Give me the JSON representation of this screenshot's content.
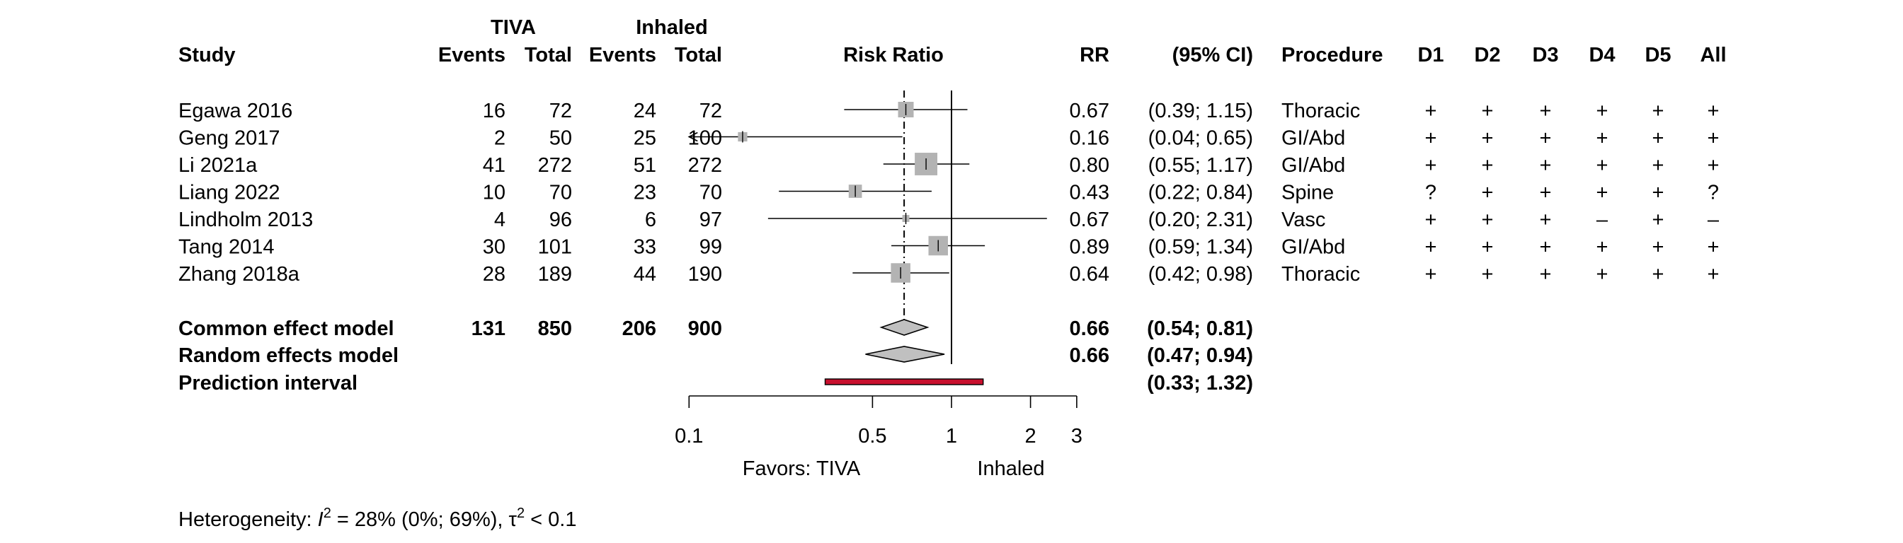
{
  "chart_data": {
    "type": "forest",
    "headers": {
      "group1": "TIVA",
      "group2": "Inhaled",
      "study": "Study",
      "events": "Events",
      "total": "Total",
      "plot": "Risk Ratio",
      "rr": "RR",
      "ci": "(95% CI)",
      "procedure": "Procedure",
      "d1": "D1",
      "d2": "D2",
      "d3": "D3",
      "d4": "D4",
      "d5": "D5",
      "all": "All"
    },
    "studies": [
      {
        "name": "Egawa 2016",
        "e1": "16",
        "n1": "72",
        "e2": "24",
        "n2": "72",
        "rr_label": "0.67",
        "ci_label": "(0.39; 1.15)",
        "rr": 0.67,
        "lo": 0.39,
        "hi": 1.15,
        "weight": 1.0,
        "procedure": "Thoracic",
        "bias": [
          "+",
          "+",
          "+",
          "+",
          "+",
          "+"
        ]
      },
      {
        "name": "Geng 2017",
        "e1": "2",
        "n1": "50",
        "e2": "25",
        "n2": "100",
        "rr_label": "0.16",
        "ci_label": "(0.04; 0.65)",
        "rr": 0.16,
        "lo": 0.04,
        "hi": 0.65,
        "weight": 0.6,
        "procedure": "GI/Abd",
        "bias": [
          "+",
          "+",
          "+",
          "+",
          "+",
          "+"
        ]
      },
      {
        "name": "Li 2021a",
        "e1": "41",
        "n1": "272",
        "e2": "51",
        "n2": "272",
        "rr_label": "0.80",
        "ci_label": "(0.55; 1.17)",
        "rr": 0.8,
        "lo": 0.55,
        "hi": 1.17,
        "weight": 1.45,
        "procedure": "GI/Abd",
        "bias": [
          "+",
          "+",
          "+",
          "+",
          "+",
          "+"
        ]
      },
      {
        "name": "Liang 2022",
        "e1": "10",
        "n1": "70",
        "e2": "23",
        "n2": "70",
        "rr_label": "0.43",
        "ci_label": "(0.22; 0.84)",
        "rr": 0.43,
        "lo": 0.22,
        "hi": 0.84,
        "weight": 0.85,
        "procedure": "Spine",
        "bias": [
          "?",
          "+",
          "+",
          "+",
          "+",
          "?"
        ]
      },
      {
        "name": "Lindholm 2013",
        "e1": "4",
        "n1": "96",
        "e2": "6",
        "n2": "97",
        "rr_label": "0.67",
        "ci_label": "(0.20; 2.31)",
        "rr": 0.67,
        "lo": 0.2,
        "hi": 2.31,
        "weight": 0.45,
        "procedure": "Vasc",
        "bias": [
          "+",
          "+",
          "+",
          "–",
          "+",
          "–"
        ]
      },
      {
        "name": "Tang 2014",
        "e1": "30",
        "n1": "101",
        "e2": "33",
        "n2": "99",
        "rr_label": "0.89",
        "ci_label": "(0.59; 1.34)",
        "rr": 0.89,
        "lo": 0.59,
        "hi": 1.34,
        "weight": 1.25,
        "procedure": "GI/Abd",
        "bias": [
          "+",
          "+",
          "+",
          "+",
          "+",
          "+"
        ]
      },
      {
        "name": "Zhang 2018a",
        "e1": "28",
        "n1": "189",
        "e2": "44",
        "n2": "190",
        "rr_label": "0.64",
        "ci_label": "(0.42; 0.98)",
        "rr": 0.64,
        "lo": 0.42,
        "hi": 0.98,
        "weight": 1.25,
        "procedure": "Thoracic",
        "bias": [
          "+",
          "+",
          "+",
          "+",
          "+",
          "+"
        ]
      }
    ],
    "common": {
      "name": "Common effect model",
      "e1": "131",
      "n1": "850",
      "e2": "206",
      "n2": "900",
      "rr_label": "0.66",
      "ci_label": "(0.54; 0.81)",
      "rr": 0.66,
      "lo": 0.54,
      "hi": 0.81
    },
    "random": {
      "name": "Random effects model",
      "rr_label": "0.66",
      "ci_label": "(0.47; 0.94)",
      "rr": 0.66,
      "lo": 0.47,
      "hi": 0.94
    },
    "prediction": {
      "name": "Prediction interval",
      "ci_label": "(0.33; 1.32)",
      "lo": 0.33,
      "hi": 1.32
    },
    "axis": {
      "scale": "log",
      "range": [
        0.1,
        3
      ],
      "ticks": [
        0.1,
        0.5,
        1,
        2,
        3
      ],
      "tick_labels": [
        "0.1",
        "0.5",
        "1",
        "2",
        "3"
      ],
      "label_left": "Favors: TIVA",
      "label_right": "Inhaled"
    },
    "heterogeneity": {
      "prefix": "Heterogeneity: ",
      "i2_symbol": "I",
      "i2_value": " = 28% (0%; 69%), ",
      "tau_symbol": "τ",
      "tau_value": " < 0.1"
    },
    "colors": {
      "square": "#b3b3b3",
      "diamond": "#c0c0c0",
      "prediction": "#c8102e"
    }
  }
}
